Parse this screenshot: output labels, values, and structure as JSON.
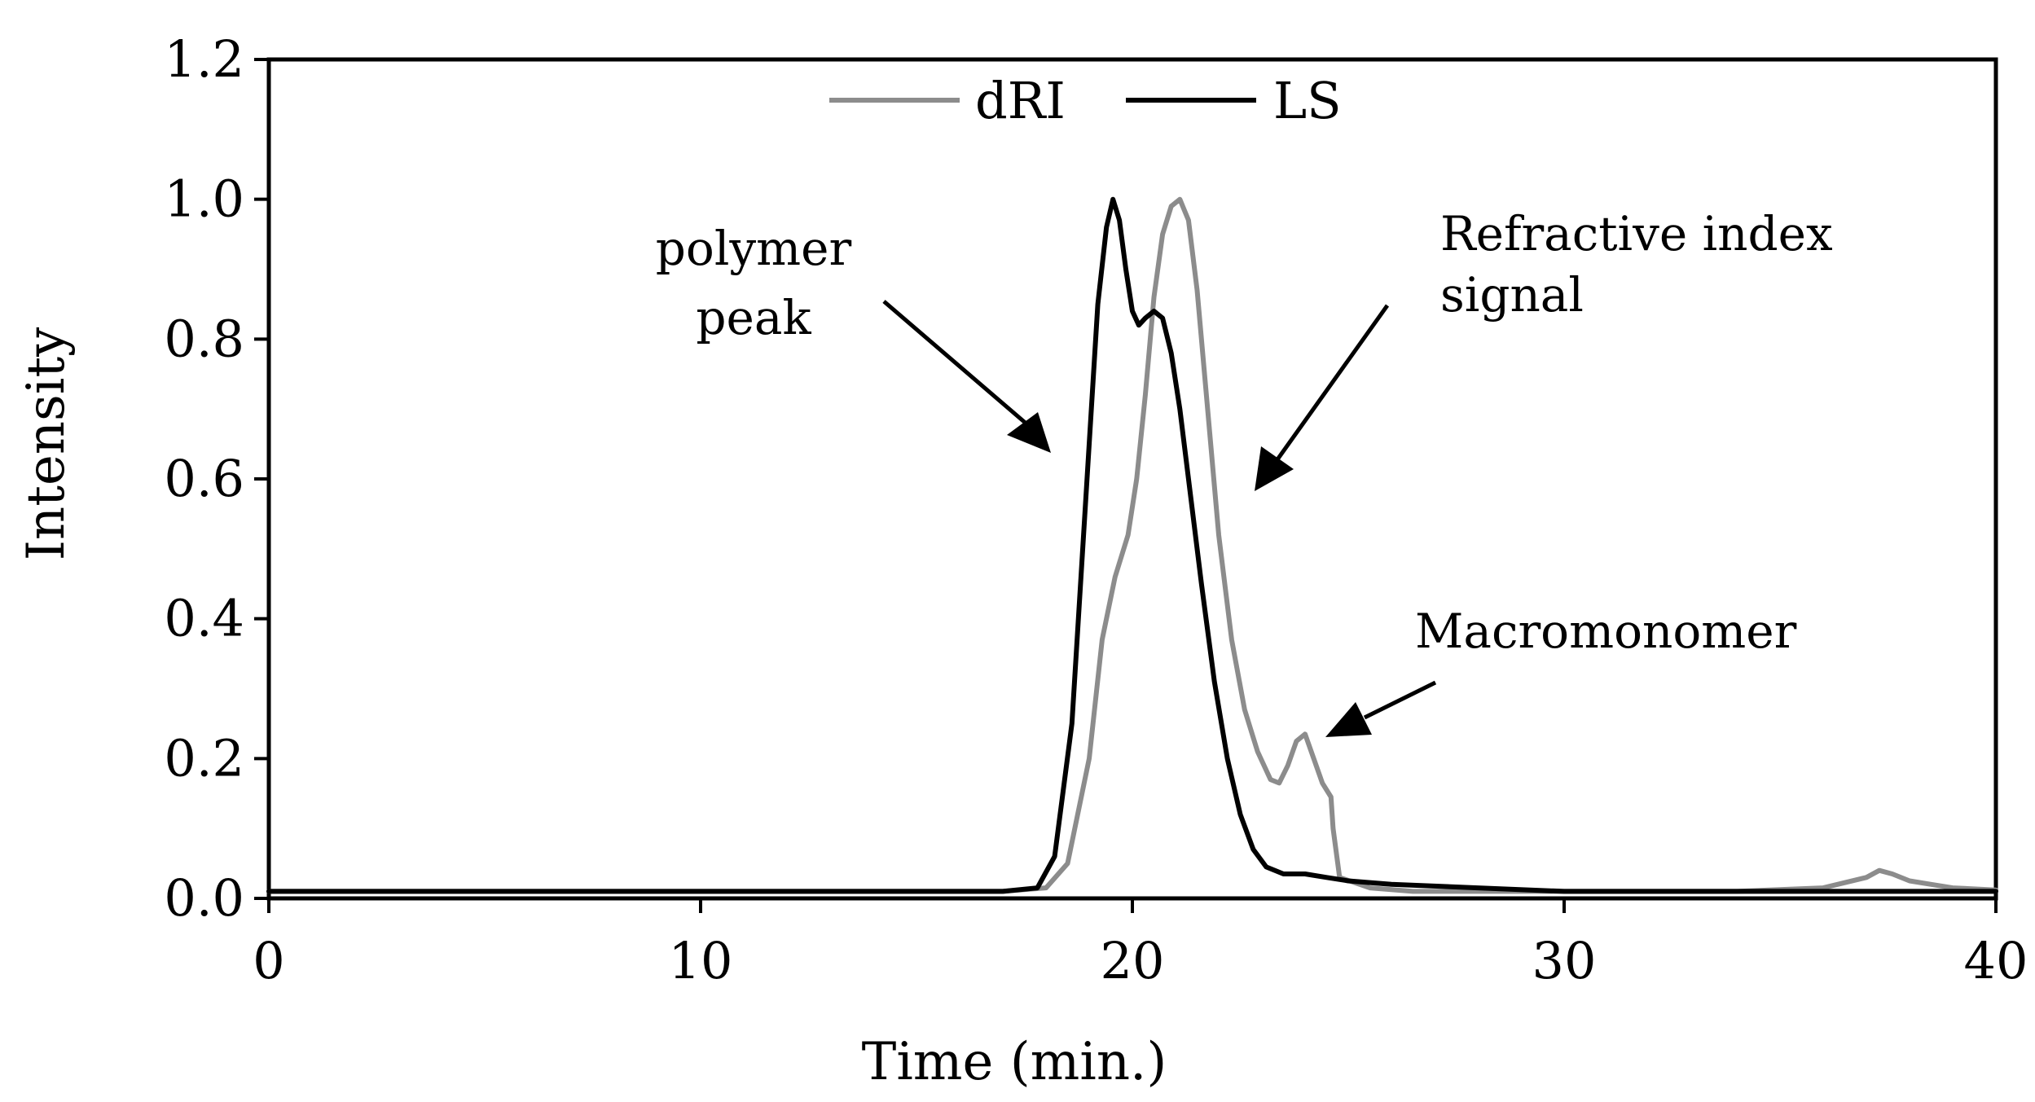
{
  "chart_data": {
    "type": "line",
    "title": "",
    "xlabel": "Time (min.)",
    "ylabel": "Intensity",
    "xlim": [
      0,
      40
    ],
    "ylim": [
      0,
      1.2
    ],
    "x_ticks": [
      "0",
      "10",
      "20",
      "30",
      "40"
    ],
    "y_ticks": [
      "0.0",
      "0.2",
      "0.4",
      "0.6",
      "0.8",
      "1.0",
      "1.2"
    ],
    "grid": false,
    "legend_position": "top-center",
    "series": [
      {
        "name": "dRI",
        "color": "#8c8c8c",
        "x": [
          0,
          5,
          10,
          15,
          17,
          18,
          18.5,
          19.0,
          19.3,
          19.6,
          19.9,
          20.1,
          20.3,
          20.5,
          20.7,
          20.9,
          21.1,
          21.3,
          21.5,
          21.7,
          22.0,
          22.3,
          22.6,
          22.9,
          23.2,
          23.4,
          23.6,
          23.8,
          24.0,
          24.2,
          24.4,
          24.6,
          24.65,
          24.8,
          25.5,
          26.5,
          28,
          30,
          32,
          34,
          36,
          37,
          37.3,
          37.6,
          38,
          38.5,
          39,
          40
        ],
        "y": [
          0.01,
          0.01,
          0.01,
          0.01,
          0.01,
          0.015,
          0.05,
          0.2,
          0.37,
          0.46,
          0.52,
          0.6,
          0.72,
          0.86,
          0.95,
          0.99,
          1.0,
          0.97,
          0.87,
          0.73,
          0.52,
          0.37,
          0.27,
          0.21,
          0.17,
          0.165,
          0.19,
          0.225,
          0.235,
          0.2,
          0.165,
          0.145,
          0.1,
          0.03,
          0.015,
          0.01,
          0.01,
          0.01,
          0.01,
          0.01,
          0.015,
          0.03,
          0.04,
          0.035,
          0.025,
          0.02,
          0.015,
          0.012
        ]
      },
      {
        "name": "LS",
        "color": "#000000",
        "x": [
          0,
          5,
          10,
          15,
          17,
          17.8,
          18.2,
          18.6,
          19.0,
          19.2,
          19.4,
          19.55,
          19.7,
          19.85,
          20.0,
          20.15,
          20.3,
          20.5,
          20.7,
          20.9,
          21.1,
          21.3,
          21.6,
          21.9,
          22.2,
          22.5,
          22.8,
          23.1,
          23.5,
          24.0,
          24.5,
          25.0,
          26,
          28,
          30,
          32,
          35,
          38,
          40
        ],
        "y": [
          0.01,
          0.01,
          0.01,
          0.01,
          0.01,
          0.015,
          0.06,
          0.25,
          0.65,
          0.85,
          0.96,
          1.0,
          0.97,
          0.9,
          0.84,
          0.82,
          0.83,
          0.84,
          0.83,
          0.78,
          0.7,
          0.6,
          0.45,
          0.31,
          0.2,
          0.12,
          0.07,
          0.045,
          0.035,
          0.035,
          0.03,
          0.025,
          0.02,
          0.015,
          0.01,
          0.01,
          0.01,
          0.01,
          0.01
        ]
      }
    ],
    "annotations": [
      {
        "lines": [
          "polymer",
          "peak"
        ],
        "target_x": 18.2,
        "target_y": 0.63
      },
      {
        "lines": [
          "Refractive index",
          "signal"
        ],
        "target_x": 22.8,
        "target_y": 0.59
      },
      {
        "lines": [
          "Macromonomer"
        ],
        "target_x": 24.4,
        "target_y": 0.23
      }
    ]
  }
}
